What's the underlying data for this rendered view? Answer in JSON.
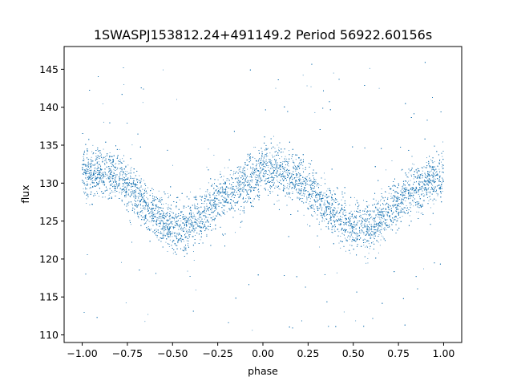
{
  "chart_data": {
    "type": "scatter",
    "title": "1SWASPJ153812.24+491149.2 Period 56922.60156s",
    "xlabel": "phase",
    "ylabel": "flux",
    "xlim": [
      -1.1,
      1.1
    ],
    "ylim": [
      109,
      148
    ],
    "grid": false,
    "legend": "none",
    "x_ticks": [
      -1.0,
      -0.75,
      -0.5,
      -0.25,
      0.0,
      0.25,
      0.5,
      0.75,
      1.0
    ],
    "x_tick_labels": [
      "−1.00",
      "−0.75",
      "−0.50",
      "−0.25",
      "0.00",
      "0.25",
      "0.50",
      "0.75",
      "1.00"
    ],
    "y_ticks": [
      110,
      115,
      120,
      125,
      130,
      135,
      140,
      145
    ],
    "y_tick_labels": [
      "110",
      "115",
      "120",
      "125",
      "130",
      "135",
      "140",
      "145"
    ],
    "series": [
      {
        "color": "#1f77b4",
        "x": [
          -1.0,
          -0.9,
          -0.8,
          -0.7,
          -0.6,
          -0.5,
          -0.4,
          -0.3,
          -0.2,
          -0.1,
          0.0,
          0.1,
          0.2,
          0.3,
          0.4,
          0.5,
          0.6,
          0.7,
          0.8,
          0.9,
          1.0
        ],
        "y": [
          131.0,
          131.5,
          131.0,
          128.5,
          126.0,
          124.0,
          124.5,
          126.5,
          128.5,
          130.0,
          131.5,
          131.5,
          130.5,
          128.5,
          126.0,
          124.0,
          124.0,
          126.5,
          128.5,
          130.0,
          131.0
        ]
      }
    ]
  }
}
